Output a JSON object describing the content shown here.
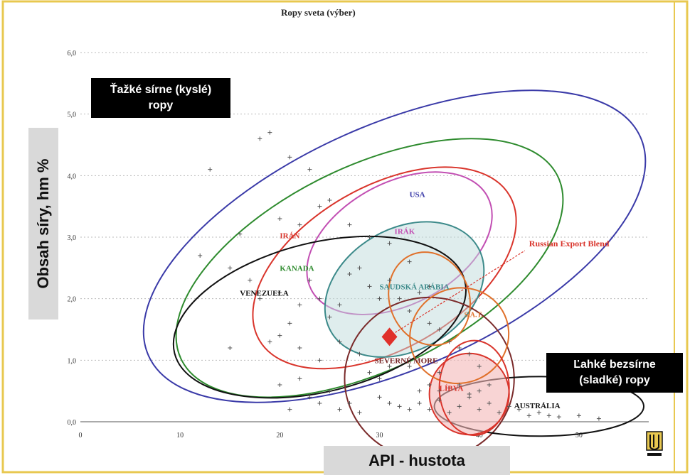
{
  "chart_data": {
    "type": "scatter",
    "title": "Ropy sveta (výber)",
    "xlabel": "API - hustota",
    "ylabel": "Obsah síry, hm %",
    "xlim": [
      0,
      57
    ],
    "ylim": [
      0,
      6
    ],
    "x_ticks": [
      "0",
      "10",
      "20",
      "30",
      "40",
      "50"
    ],
    "y_ticks": [
      "0,0",
      "1,0",
      "2,0",
      "3,0",
      "4,0",
      "5,0",
      "6,0"
    ],
    "grid": true,
    "points": [
      {
        "x": 19,
        "y": 4.7
      },
      {
        "x": 18,
        "y": 4.6
      },
      {
        "x": 21,
        "y": 4.3
      },
      {
        "x": 13,
        "y": 4.1
      },
      {
        "x": 23,
        "y": 4.1
      },
      {
        "x": 16,
        "y": 3.05
      },
      {
        "x": 20,
        "y": 3.3
      },
      {
        "x": 22,
        "y": 3.2
      },
      {
        "x": 24,
        "y": 3.5
      },
      {
        "x": 25,
        "y": 3.6
      },
      {
        "x": 27,
        "y": 3.2
      },
      {
        "x": 29,
        "y": 3.0
      },
      {
        "x": 31,
        "y": 2.9
      },
      {
        "x": 33,
        "y": 2.6
      },
      {
        "x": 35,
        "y": 2.2
      },
      {
        "x": 12,
        "y": 2.7
      },
      {
        "x": 15,
        "y": 2.5
      },
      {
        "x": 17,
        "y": 2.3
      },
      {
        "x": 18,
        "y": 2.0
      },
      {
        "x": 20,
        "y": 2.1
      },
      {
        "x": 21,
        "y": 1.6
      },
      {
        "x": 22,
        "y": 1.9
      },
      {
        "x": 23,
        "y": 2.3
      },
      {
        "x": 24,
        "y": 2.0
      },
      {
        "x": 25,
        "y": 1.7
      },
      {
        "x": 26,
        "y": 1.9
      },
      {
        "x": 27,
        "y": 2.4
      },
      {
        "x": 28,
        "y": 2.5
      },
      {
        "x": 29,
        "y": 2.2
      },
      {
        "x": 30,
        "y": 2.0
      },
      {
        "x": 31,
        "y": 2.3
      },
      {
        "x": 32,
        "y": 2.0
      },
      {
        "x": 33,
        "y": 1.8
      },
      {
        "x": 34,
        "y": 2.1
      },
      {
        "x": 35,
        "y": 1.6
      },
      {
        "x": 36,
        "y": 1.5
      },
      {
        "x": 37,
        "y": 1.3
      },
      {
        "x": 38,
        "y": 1.2
      },
      {
        "x": 39,
        "y": 1.1
      },
      {
        "x": 40,
        "y": 0.9
      },
      {
        "x": 15,
        "y": 1.2
      },
      {
        "x": 19,
        "y": 1.3
      },
      {
        "x": 20,
        "y": 1.4
      },
      {
        "x": 22,
        "y": 1.2
      },
      {
        "x": 24,
        "y": 1.0
      },
      {
        "x": 26,
        "y": 1.3
      },
      {
        "x": 28,
        "y": 1.1
      },
      {
        "x": 29,
        "y": 0.8
      },
      {
        "x": 30,
        "y": 0.7
      },
      {
        "x": 31,
        "y": 0.9
      },
      {
        "x": 20,
        "y": 0.6
      },
      {
        "x": 21,
        "y": 0.2
      },
      {
        "x": 22,
        "y": 0.7
      },
      {
        "x": 23,
        "y": 0.4
      },
      {
        "x": 24,
        "y": 0.3
      },
      {
        "x": 25,
        "y": 0.5
      },
      {
        "x": 26,
        "y": 0.2
      },
      {
        "x": 27,
        "y": 0.3
      },
      {
        "x": 28,
        "y": 0.15
      },
      {
        "x": 30,
        "y": 0.4
      },
      {
        "x": 31,
        "y": 0.3
      },
      {
        "x": 32,
        "y": 0.25
      },
      {
        "x": 33,
        "y": 0.2
      },
      {
        "x": 34,
        "y": 0.3
      },
      {
        "x": 35,
        "y": 0.2
      },
      {
        "x": 36,
        "y": 0.35
      },
      {
        "x": 37,
        "y": 0.15
      },
      {
        "x": 38,
        "y": 0.25
      },
      {
        "x": 39,
        "y": 0.4
      },
      {
        "x": 40,
        "y": 0.2
      },
      {
        "x": 41,
        "y": 0.3
      },
      {
        "x": 42,
        "y": 0.15
      },
      {
        "x": 43,
        "y": 0.25
      },
      {
        "x": 44,
        "y": 0.2
      },
      {
        "x": 45,
        "y": 0.1
      },
      {
        "x": 46,
        "y": 0.15
      },
      {
        "x": 47,
        "y": 0.1
      },
      {
        "x": 48,
        "y": 0.08
      },
      {
        "x": 50,
        "y": 0.1
      },
      {
        "x": 52,
        "y": 0.05
      },
      {
        "x": 34,
        "y": 0.5
      },
      {
        "x": 35,
        "y": 0.6
      },
      {
        "x": 36,
        "y": 0.5
      },
      {
        "x": 37,
        "y": 0.55
      },
      {
        "x": 38,
        "y": 0.6
      },
      {
        "x": 39,
        "y": 0.45
      },
      {
        "x": 40,
        "y": 0.5
      },
      {
        "x": 41,
        "y": 0.6
      },
      {
        "x": 36,
        "y": 0.8
      },
      {
        "x": 33,
        "y": 0.9
      }
    ],
    "regions": [
      {
        "name": "USA",
        "color": "#3a3aa8",
        "cx": 31.5,
        "cy": 2.85,
        "rx": 27,
        "ry": 0.9,
        "angle": -24,
        "label_x": 33,
        "label_y": 3.65
      },
      {
        "name": "KANADA",
        "color": "#2e8b2e",
        "cx": 29,
        "cy": 2.5,
        "rx": 21,
        "ry": 0.75,
        "angle": -26,
        "label_x": 20,
        "label_y": 2.45
      },
      {
        "name": "IRÁN",
        "color": "#d9342b",
        "cx": 30.5,
        "cy": 2.5,
        "rx": 14.5,
        "ry": 0.6,
        "angle": -30,
        "label_x": 20,
        "label_y": 2.98
      },
      {
        "name": "IRÁK",
        "color": "#c24fb3",
        "cx": 32,
        "cy": 2.9,
        "rx": 10,
        "ry": 0.45,
        "angle": -28,
        "label_x": 31.5,
        "label_y": 3.05
      },
      {
        "name": "SAUDSKÁ ARÁBIA",
        "color": "#3c8a8a",
        "cx": 32.5,
        "cy": 2.15,
        "rx": 8.5,
        "ry": 0.45,
        "angle": -30,
        "label_x": 30,
        "label_y": 2.15
      },
      {
        "name": "VENEZUELA",
        "color": "#111111",
        "cx": 24,
        "cy": 1.7,
        "rx": 15,
        "ry": 0.55,
        "angle": -14,
        "label_x": 16,
        "label_y": 2.05
      },
      {
        "name": "SEVERNÉ MORE",
        "color": "#7a2a2a",
        "cx": 35,
        "cy": 0.7,
        "rx": 8.5,
        "ry": 0.6,
        "angle": 0,
        "label_x": 29.5,
        "label_y": 0.95
      },
      {
        "name": "AUSTRÁLIA",
        "color": "#111111",
        "cx": 46,
        "cy": 0.25,
        "rx": 10.5,
        "ry": 0.22,
        "angle": 0,
        "label_x": 43.5,
        "label_y": 0.22
      },
      {
        "name": "LÍBYA",
        "color": "#d9342b",
        "cx": 39,
        "cy": 0.45,
        "rx": 4,
        "ry": 0.3,
        "angle": 0,
        "label_x": 36,
        "label_y": 0.5
      },
      {
        "name": "",
        "color": "#e0702a",
        "cx": 35,
        "cy": 2.0,
        "rx": 4,
        "ry": 0.35,
        "angle": -20,
        "label_x": 0,
        "label_y": 0
      },
      {
        "name": "",
        "color": "#e0702a",
        "cx": 38,
        "cy": 1.4,
        "rx": 5,
        "ry": 0.35,
        "angle": -25,
        "label_x": 0,
        "label_y": 0
      },
      {
        "name": "",
        "color": "#d9342b",
        "cx": 39.5,
        "cy": 0.55,
        "rx": 3.5,
        "ry": 0.35,
        "angle": 0,
        "label_x": 0,
        "label_y": 0
      }
    ],
    "annotations": [
      {
        "text": "Russian Export Blend",
        "color": "#d9342b",
        "x": 31,
        "y": 1.38,
        "text_x": 45,
        "text_y": 2.85
      }
    ],
    "extra_labels": [
      {
        "text": "S.A.T.",
        "color": "#e0702a",
        "x": 38.5,
        "y": 1.7
      }
    ]
  },
  "callouts": {
    "heavy_sour": "Ťažké sírne (kyslé) ropy",
    "light_sweet": "Ľahké bezsírne (sladké) ropy"
  },
  "colors": {
    "frame_border": "#e8c850",
    "highlight_diamond": "#e0302a"
  }
}
